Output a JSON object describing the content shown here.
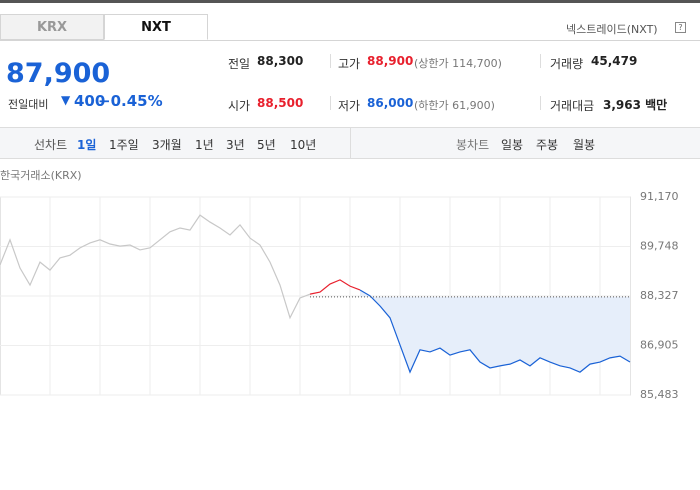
{
  "tabs": [
    "KRX",
    "NXT"
  ],
  "market_link": "넥스트레이드(NXT)",
  "help_icon": "?",
  "quote": {
    "price": "87,900",
    "change_label": "전일대비",
    "change_arrow": "▼",
    "change": "400",
    "change_pct": "−0.45%"
  },
  "stats": [
    [
      {
        "label": "전일",
        "value": "88,300"
      },
      {
        "label": "고가",
        "value": "88,900",
        "note": "(상한가 114,700)"
      },
      {
        "label": "거래량",
        "value": "45,479"
      }
    ],
    [
      {
        "label": "시가",
        "value": "88,500"
      },
      {
        "label": "저가",
        "value": "86,000",
        "note": "(하한가 61,900)"
      },
      {
        "label": "거래대금",
        "value": "3,963 백만"
      }
    ]
  ],
  "toolbar": {
    "line_label": "선차트",
    "line_periods": [
      "1일",
      "1주일",
      "3개월",
      "1년",
      "3년",
      "5년",
      "10년"
    ],
    "candle_label": "봉차트",
    "candle_periods": [
      "일봉",
      "주봉",
      "월봉"
    ]
  },
  "chart_data": {
    "type": "line",
    "subtitle": "한국거래소(KRX)",
    "ylim": [
      85483,
      91170
    ],
    "yticks": [
      {
        "value": 91170,
        "label": "91,170"
      },
      {
        "value": 89748,
        "label": "89,748"
      },
      {
        "value": 88327,
        "label": "88,327"
      },
      {
        "value": 86905,
        "label": "86,905"
      },
      {
        "value": 85483,
        "label": "85,483"
      }
    ],
    "baseline": 88300,
    "series": [
      {
        "color": "#c8c8c8",
        "values": [
          89220,
          89940,
          89130,
          88640,
          89300,
          89070,
          89420,
          89500,
          89710,
          89850,
          89940,
          89820,
          89760,
          89790,
          89650,
          89710,
          89940,
          90170,
          90280,
          90220,
          90650,
          90450,
          90280,
          90080,
          90370,
          89990,
          89790,
          89300,
          88640,
          87700,
          88270,
          88380,
          null,
          null,
          null,
          null,
          null,
          null,
          null,
          null,
          null,
          null,
          null,
          null,
          null,
          null,
          null,
          null,
          null,
          null,
          null,
          null,
          null,
          null,
          null,
          null,
          null,
          null,
          null,
          null,
          null,
          null,
          null,
          null
        ]
      },
      {
        "color": "#e8202d",
        "values": [
          null,
          null,
          null,
          null,
          null,
          null,
          null,
          null,
          null,
          null,
          null,
          null,
          null,
          null,
          null,
          null,
          null,
          null,
          null,
          null,
          null,
          null,
          null,
          null,
          null,
          null,
          null,
          null,
          null,
          null,
          null,
          88380,
          88440,
          88670,
          88790,
          88610,
          88500,
          null,
          null,
          null,
          null,
          null,
          null,
          null,
          null,
          null,
          null,
          null,
          null,
          null,
          null,
          null,
          null,
          null,
          null,
          null,
          null,
          null,
          null,
          null,
          null,
          null,
          null,
          null
        ]
      },
      {
        "color": "#1a62d6",
        "values": [
          null,
          null,
          null,
          null,
          null,
          null,
          null,
          null,
          null,
          null,
          null,
          null,
          null,
          null,
          null,
          null,
          null,
          null,
          null,
          null,
          null,
          null,
          null,
          null,
          null,
          null,
          null,
          null,
          null,
          null,
          null,
          null,
          null,
          null,
          null,
          null,
          88500,
          88330,
          88040,
          87700,
          86920,
          86140,
          86780,
          86720,
          86830,
          86630,
          86720,
          86780,
          86430,
          86260,
          86320,
          86370,
          86490,
          86320,
          86550,
          86430,
          86320,
          86260,
          86140,
          86370,
          86430,
          86550,
          86600,
          86430
        ]
      }
    ]
  }
}
